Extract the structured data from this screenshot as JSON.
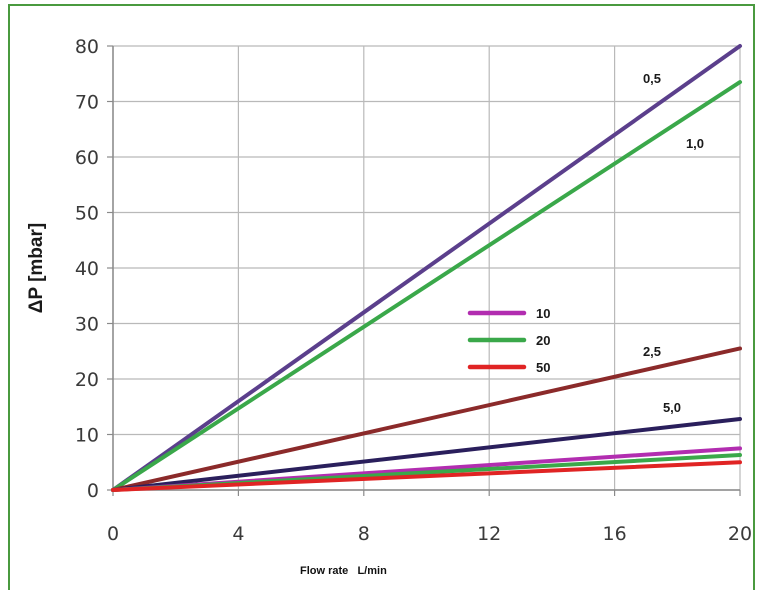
{
  "chart_data": {
    "type": "line",
    "xlabel": "Flow rate   L/min",
    "ylabel": "ΔP [mbar]",
    "x_ticks": [
      0,
      4,
      8,
      12,
      16,
      20
    ],
    "y_ticks": [
      0,
      10,
      20,
      30,
      40,
      50,
      60,
      70,
      80
    ],
    "xlim": [
      0,
      20
    ],
    "ylim": [
      0,
      80
    ],
    "grid": true,
    "series": [
      {
        "label": "0,5",
        "color": "#5b3f8c",
        "x": [
          0,
          20
        ],
        "y": [
          0,
          80
        ]
      },
      {
        "label": "1,0",
        "color": "#3aa84a",
        "x": [
          0,
          20
        ],
        "y": [
          0,
          73.5
        ]
      },
      {
        "label": "2,5",
        "color": "#8b2a2a",
        "x": [
          0,
          20
        ],
        "y": [
          0,
          25.5
        ]
      },
      {
        "label": "5,0",
        "color": "#2a1f5c",
        "x": [
          0,
          20
        ],
        "y": [
          0,
          12.8
        ]
      },
      {
        "color": "#b22db0",
        "x": [
          0,
          20
        ],
        "y": [
          0,
          7.5
        ]
      },
      {
        "color": "#3aa84a",
        "x": [
          0,
          20
        ],
        "y": [
          0,
          6.3
        ]
      },
      {
        "color": "#e02424",
        "x": [
          0,
          20
        ],
        "y": [
          0,
          5.0
        ]
      }
    ],
    "legend": {
      "placement": "center",
      "entries": [
        {
          "label": "10",
          "color": "#b22db0"
        },
        {
          "label": "20",
          "color": "#3aa84a"
        },
        {
          "label": "50",
          "color": "#e02424"
        }
      ]
    }
  }
}
